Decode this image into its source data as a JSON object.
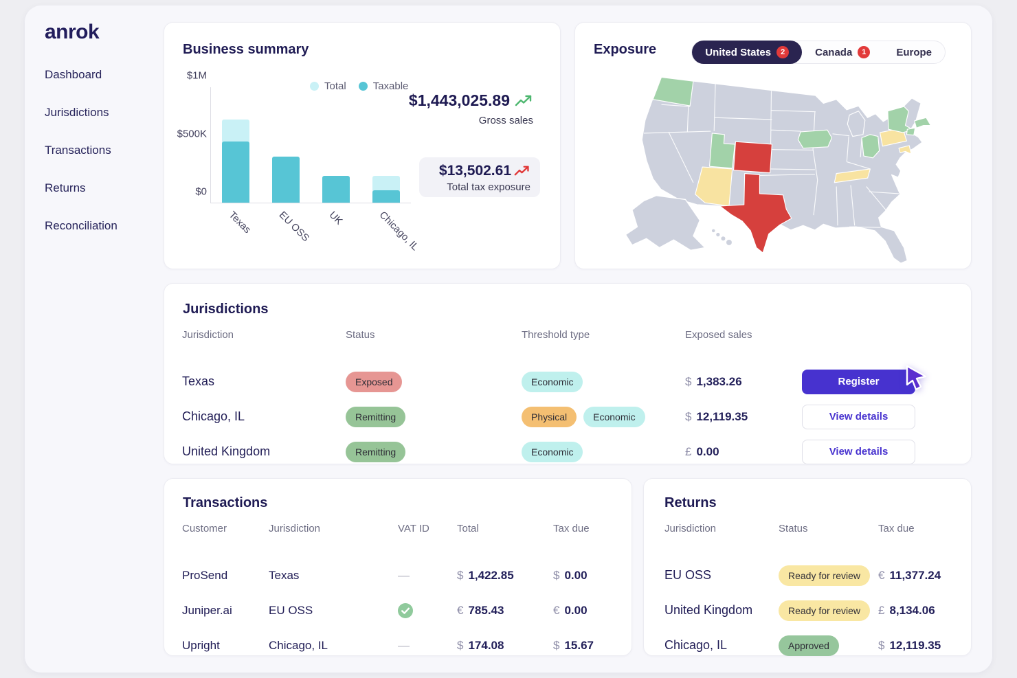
{
  "brand": {
    "logo": "anrok"
  },
  "sidebar": {
    "items": [
      {
        "label": "Dashboard"
      },
      {
        "label": "Jurisdictions"
      },
      {
        "label": "Transactions"
      },
      {
        "label": "Returns"
      },
      {
        "label": "Reconciliation"
      }
    ]
  },
  "business_summary": {
    "title": "Business summary",
    "gross_sales": {
      "value": "$1,443,025.89",
      "label": "Gross sales",
      "trend": "up",
      "trend_color": "#4db76f"
    },
    "tax_exposure": {
      "value": "$13,502.61",
      "label": "Total tax exposure",
      "trend": "up",
      "trend_color": "#e13535"
    }
  },
  "chart_data": {
    "type": "bar",
    "title": "Business summary",
    "categories": [
      "Texas",
      "EU OSS",
      "UK",
      "Chicago, IL"
    ],
    "series": [
      {
        "name": "Total",
        "values": [
          720000,
          400000,
          230000,
          230000
        ],
        "color": "#c9f1f6"
      },
      {
        "name": "Taxable",
        "values": [
          530000,
          400000,
          230000,
          110000
        ],
        "color": "#57c5d5"
      }
    ],
    "xlabel": "",
    "ylabel": "",
    "ylim": [
      0,
      1000000
    ],
    "yticks": [
      {
        "label": "$1M",
        "value": 1000000
      },
      {
        "label": "$500K",
        "value": 500000
      },
      {
        "label": "$0",
        "value": 0
      }
    ],
    "grid": false,
    "legend_position": "top-right"
  },
  "exposure": {
    "title": "Exposure",
    "tabs": [
      {
        "label": "United States",
        "badge": "2",
        "active": true
      },
      {
        "label": "Canada",
        "badge": "1",
        "active": false
      },
      {
        "label": "Europe",
        "active": false
      }
    ],
    "map": {
      "colors": {
        "default": "#cdd1dd",
        "registered": "#a2d2a9",
        "approaching": "#f8e3a1",
        "exposed": "#d6403d"
      },
      "states": [
        {
          "id": "WA",
          "name": "Washington",
          "status": "registered"
        },
        {
          "id": "UT",
          "name": "Utah",
          "status": "registered"
        },
        {
          "id": "AZ",
          "name": "Arizona",
          "status": "approaching"
        },
        {
          "id": "CO",
          "name": "Colorado",
          "status": "exposed"
        },
        {
          "id": "TX",
          "name": "Texas",
          "status": "exposed"
        },
        {
          "id": "IA",
          "name": "Iowa",
          "status": "registered"
        },
        {
          "id": "OH",
          "name": "Ohio",
          "status": "registered"
        },
        {
          "id": "TN",
          "name": "Tennessee",
          "status": "approaching"
        },
        {
          "id": "PA",
          "name": "Pennsylvania",
          "status": "approaching"
        },
        {
          "id": "NY",
          "name": "New York",
          "status": "registered"
        },
        {
          "id": "MA",
          "name": "Massachusetts",
          "status": "registered"
        },
        {
          "id": "CT",
          "name": "Connecticut",
          "status": "registered"
        },
        {
          "id": "MD",
          "name": "Maryland",
          "status": "approaching"
        }
      ]
    }
  },
  "jurisdictions": {
    "title": "Jurisdictions",
    "columns": [
      "Jurisdiction",
      "Status",
      "Threshold type",
      "Exposed sales"
    ],
    "rows": [
      {
        "jurisdiction": "Texas",
        "status": {
          "label": "Exposed",
          "variant": "exposed"
        },
        "thresholds": [
          {
            "label": "Economic",
            "variant": "economic"
          }
        ],
        "exposed_sales": {
          "currency": "$",
          "amount": "1,383.26"
        },
        "action": {
          "label": "Register",
          "variant": "primary"
        }
      },
      {
        "jurisdiction": "Chicago, IL",
        "status": {
          "label": "Remitting",
          "variant": "remitting"
        },
        "thresholds": [
          {
            "label": "Physical",
            "variant": "physical"
          },
          {
            "label": "Economic",
            "variant": "economic"
          }
        ],
        "exposed_sales": {
          "currency": "$",
          "amount": "12,119.35"
        },
        "action": {
          "label": "View details",
          "variant": "secondary"
        }
      },
      {
        "jurisdiction": "United Kingdom",
        "status": {
          "label": "Remitting",
          "variant": "remitting"
        },
        "thresholds": [
          {
            "label": "Economic",
            "variant": "economic"
          }
        ],
        "exposed_sales": {
          "currency": "£",
          "amount": "0.00"
        },
        "action": {
          "label": "View details",
          "variant": "secondary"
        }
      }
    ]
  },
  "transactions": {
    "title": "Transactions",
    "columns": [
      "Customer",
      "Jurisdiction",
      "VAT ID",
      "Total",
      "Tax due"
    ],
    "rows": [
      {
        "customer": "ProSend",
        "jurisdiction": "Texas",
        "vat": "—",
        "vat_icon": "",
        "total": {
          "currency": "$",
          "amount": "1,422.85"
        },
        "tax_due": {
          "currency": "$",
          "amount": "0.00"
        }
      },
      {
        "customer": "Juniper.ai",
        "jurisdiction": "EU OSS",
        "vat": "",
        "vat_icon": "check-circle-icon",
        "total": {
          "currency": "€",
          "amount": "785.43"
        },
        "tax_due": {
          "currency": "€",
          "amount": "0.00"
        }
      },
      {
        "customer": "Upright",
        "jurisdiction": "Chicago, IL",
        "vat": "—",
        "vat_icon": "",
        "total": {
          "currency": "$",
          "amount": "174.08"
        },
        "tax_due": {
          "currency": "$",
          "amount": "15.67"
        }
      }
    ]
  },
  "returns": {
    "title": "Returns",
    "columns": [
      "Jurisdiction",
      "Status",
      "Tax due"
    ],
    "rows": [
      {
        "jurisdiction": "EU OSS",
        "status": {
          "label": "Ready for review",
          "variant": "ready"
        },
        "tax_due": {
          "currency": "€",
          "amount": "11,377.24"
        }
      },
      {
        "jurisdiction": "United Kingdom",
        "status": {
          "label": "Ready for review",
          "variant": "ready"
        },
        "tax_due": {
          "currency": "£",
          "amount": "8,134.06"
        }
      },
      {
        "jurisdiction": "Chicago, IL",
        "status": {
          "label": "Approved",
          "variant": "approved"
        },
        "tax_due": {
          "currency": "$",
          "amount": "12,119.35"
        }
      }
    ]
  }
}
